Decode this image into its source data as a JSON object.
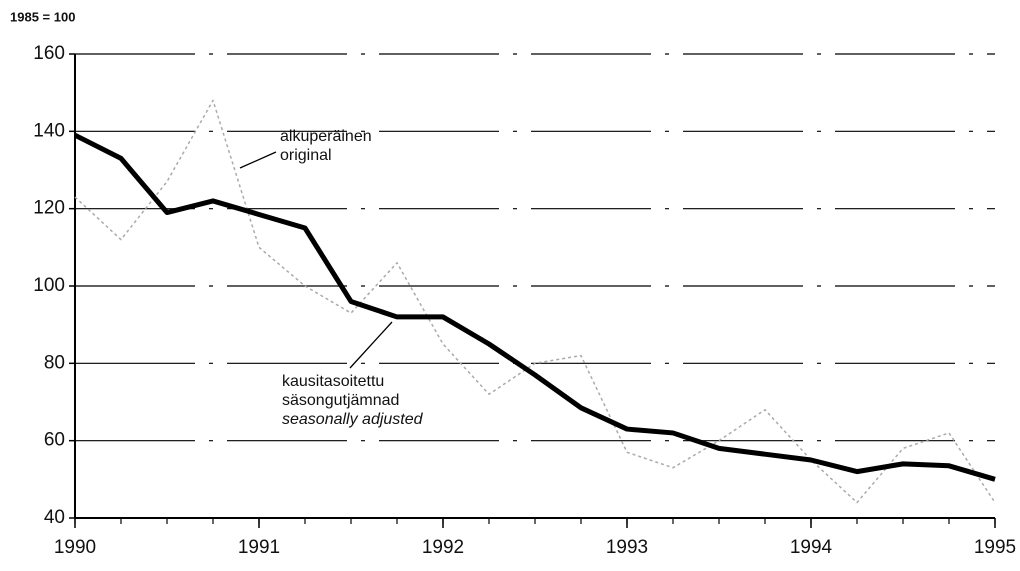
{
  "chart_data": {
    "type": "line",
    "ylabel": "1985 = 100",
    "x": [
      1990,
      1990.25,
      1990.5,
      1990.75,
      1991,
      1991.25,
      1991.5,
      1991.75,
      1992,
      1992.25,
      1992.5,
      1992.75,
      1993,
      1993.25,
      1993.5,
      1993.75,
      1994,
      1994.25,
      1994.5,
      1994.75,
      1995
    ],
    "series": [
      {
        "color": "#aaaaaa",
        "values": [
          123,
          112,
          127,
          148,
          110,
          100,
          93,
          106,
          85,
          72,
          80,
          82,
          57,
          53,
          60,
          68,
          55,
          44,
          58,
          62,
          44
        ]
      },
      {
        "color": "#000000",
        "values": [
          139,
          133,
          119,
          122,
          118.5,
          115,
          96,
          92,
          92,
          85,
          77,
          68.5,
          63,
          62,
          58,
          56.5,
          55,
          52,
          54,
          53.5,
          50
        ]
      }
    ],
    "xlim": [
      1990,
      1995
    ],
    "xticks": [
      1990,
      1991,
      1992,
      1993,
      1994,
      1995
    ],
    "ylim": [
      40,
      160
    ],
    "yticks": [
      40,
      60,
      80,
      100,
      120,
      140,
      160
    ],
    "grid": true,
    "annotations": [
      {
        "text": [
          "alkuperäinen",
          "original"
        ],
        "series": 0
      },
      {
        "text": [
          "kausitasoitettu",
          "säsongutjämnad",
          "seasonally adjusted"
        ],
        "series": 1
      }
    ]
  }
}
